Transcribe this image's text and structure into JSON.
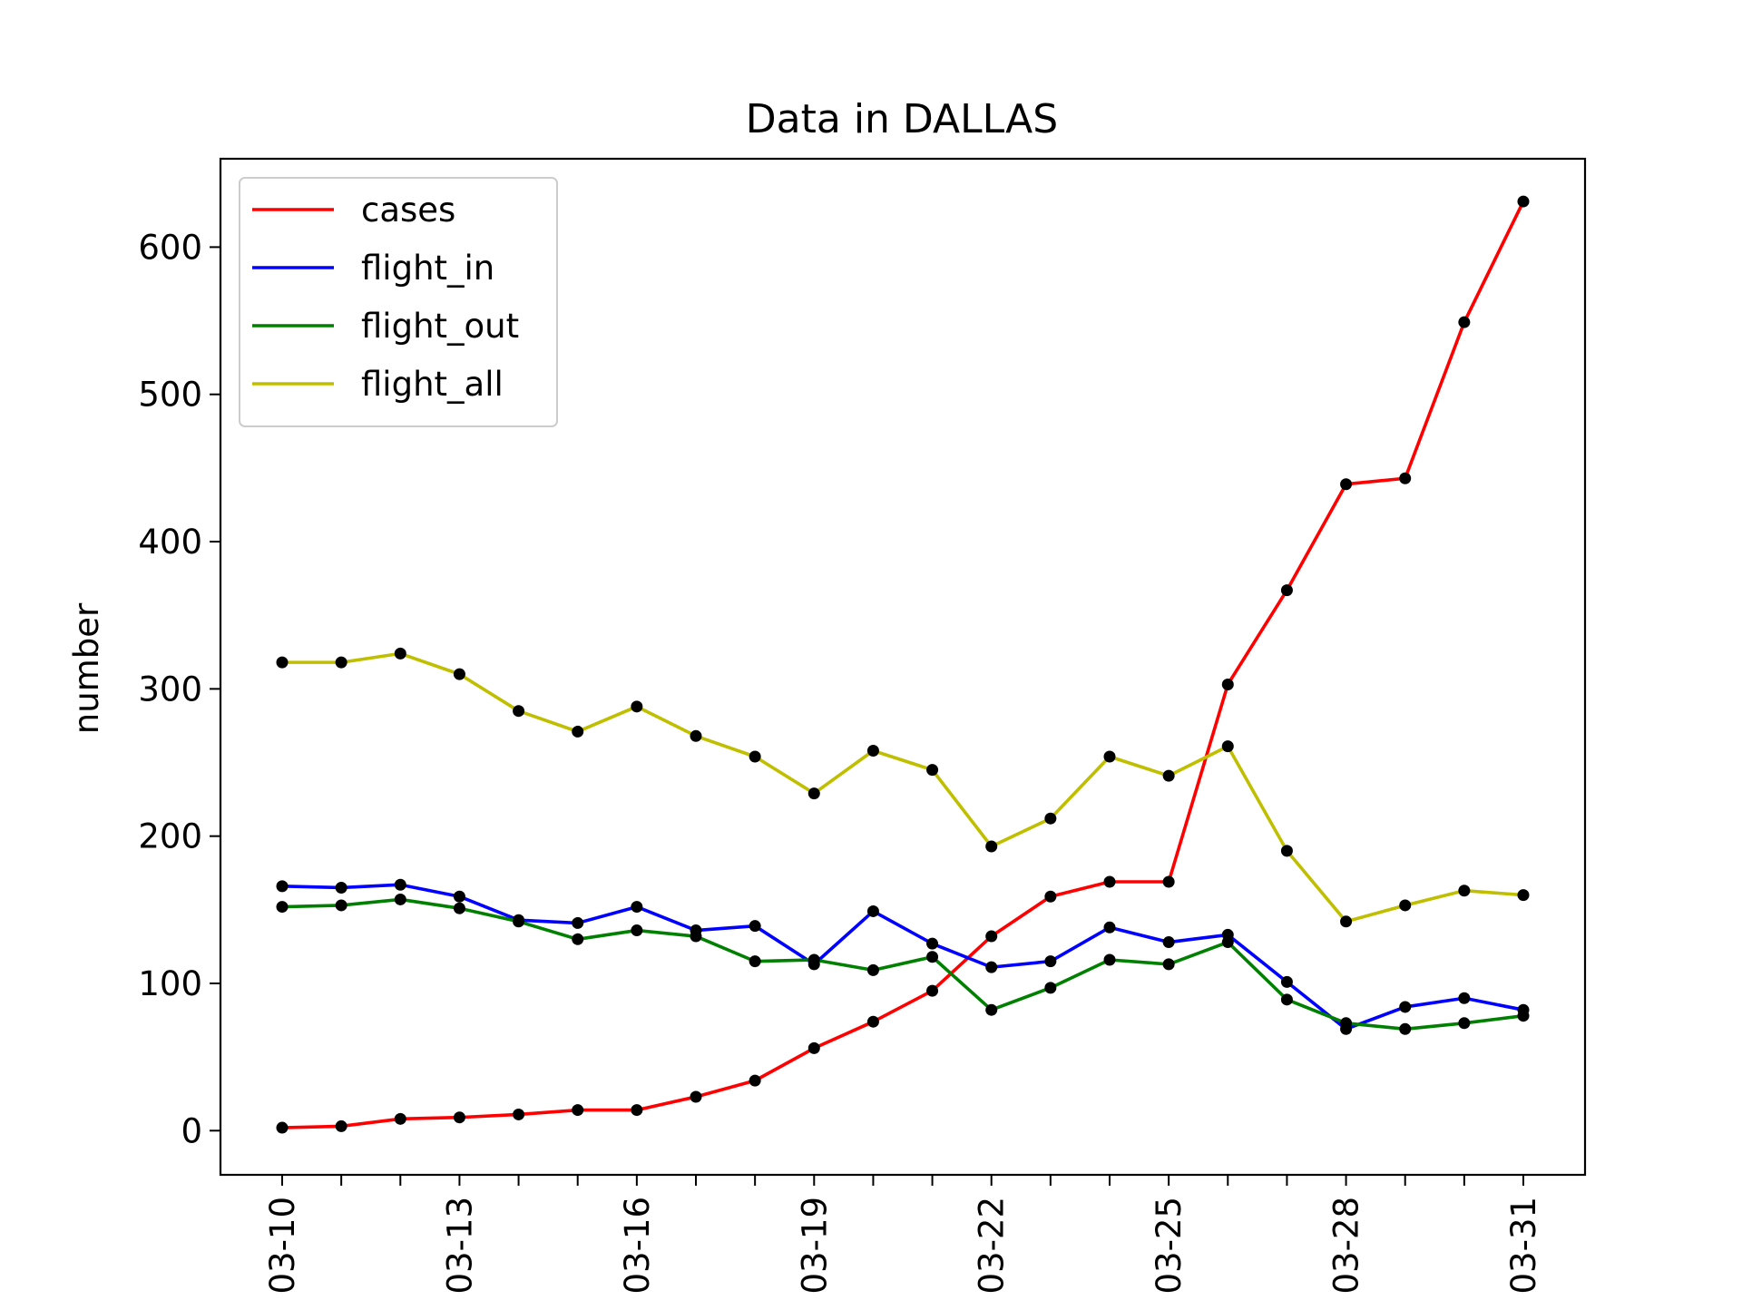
{
  "chart_data": {
    "type": "line",
    "title": "Data in DALLAS",
    "xlabel": "",
    "ylabel": "number",
    "x": [
      "03-10",
      "03-11",
      "03-12",
      "03-13",
      "03-14",
      "03-15",
      "03-16",
      "03-17",
      "03-18",
      "03-19",
      "03-20",
      "03-21",
      "03-22",
      "03-23",
      "03-24",
      "03-25",
      "03-26",
      "03-27",
      "03-28",
      "03-29",
      "03-30",
      "03-31"
    ],
    "x_tick_labels": [
      "03-10",
      "03-13",
      "03-16",
      "03-19",
      "03-22",
      "03-25",
      "03-28",
      "03-31"
    ],
    "ylim": [
      -30,
      660
    ],
    "y_ticks": [
      0,
      100,
      200,
      300,
      400,
      500,
      600
    ],
    "grid": false,
    "legend_position": "top-left",
    "marker_color": "#000000",
    "series": [
      {
        "name": "cases",
        "color": "#ff0000",
        "values": [
          2,
          3,
          8,
          9,
          11,
          14,
          14,
          23,
          34,
          56,
          74,
          95,
          132,
          159,
          169,
          169,
          303,
          367,
          439,
          443,
          549,
          631
        ]
      },
      {
        "name": "flight_in",
        "color": "#0000ff",
        "values": [
          166,
          165,
          167,
          159,
          143,
          141,
          152,
          136,
          139,
          113,
          149,
          127,
          111,
          115,
          138,
          128,
          133,
          101,
          69,
          84,
          90,
          82
        ]
      },
      {
        "name": "flight_out",
        "color": "#008000",
        "values": [
          152,
          153,
          157,
          151,
          142,
          130,
          136,
          132,
          115,
          116,
          109,
          118,
          82,
          97,
          116,
          113,
          128,
          89,
          73,
          69,
          73,
          78
        ]
      },
      {
        "name": "flight_all",
        "color": "#bfbf00",
        "values": [
          318,
          318,
          324,
          310,
          285,
          271,
          288,
          268,
          254,
          229,
          258,
          245,
          193,
          212,
          254,
          241,
          261,
          190,
          142,
          153,
          163,
          160
        ]
      }
    ]
  }
}
